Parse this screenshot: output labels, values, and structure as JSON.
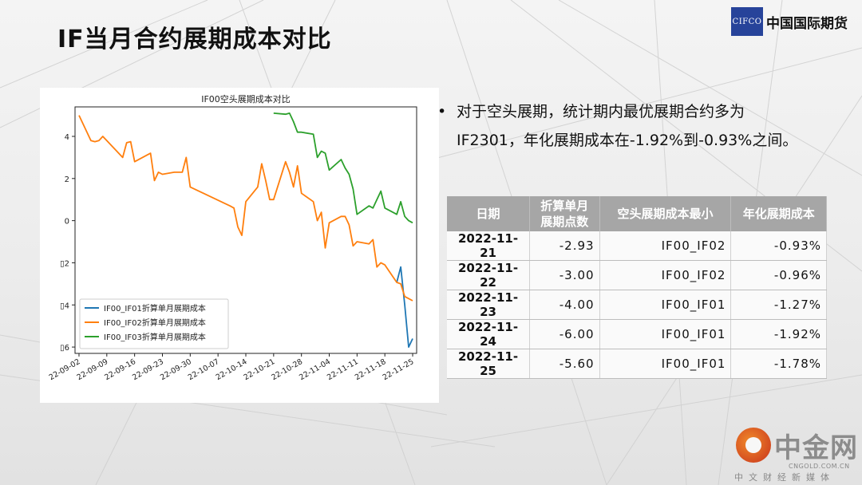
{
  "page": {
    "title": "IF当月合约展期成本对比"
  },
  "logo": {
    "box_text": "CIFCO",
    "name": "中国国际期货"
  },
  "bullet": {
    "line1": "对于空头展期，统计期内最优展期合约多为",
    "line2": "IF2301，年化展期成本在-1.92%到-0.93%之间。"
  },
  "table": {
    "headers": [
      "日期",
      "折算单月展期点数",
      "空头展期成本最小",
      "年化展期成本"
    ],
    "rows": [
      {
        "date": "2022-11-21",
        "points": "-2.93",
        "contract": "IF00_IF02",
        "rate": "-0.93%"
      },
      {
        "date": "2022-11-22",
        "points": "-3.00",
        "contract": "IF00_IF02",
        "rate": "-0.96%"
      },
      {
        "date": "2022-11-23",
        "points": "-4.00",
        "contract": "IF00_IF01",
        "rate": "-1.27%"
      },
      {
        "date": "2022-11-24",
        "points": "-6.00",
        "contract": "IF00_IF01",
        "rate": "-1.92%"
      },
      {
        "date": "2022-11-25",
        "points": "-5.60",
        "contract": "IF00_IF01",
        "rate": "-1.78%"
      }
    ]
  },
  "watermark": {
    "name": "中金网",
    "sub": "CNGOLD.COM.CN",
    "tag": "中文财经新媒体"
  },
  "chart_data": {
    "type": "line",
    "title": "IF00空头展期成本对比",
    "xlabel": "",
    "ylabel": "",
    "ylim": [
      -6.3,
      5.4
    ],
    "xlim": [
      "2022-09-01",
      "2022-11-26"
    ],
    "yticks": [
      4,
      2,
      0,
      -2,
      -4,
      -6
    ],
    "ytick_labels": [
      "4",
      "2",
      "0",
      "▯2",
      "▯4",
      "▯6"
    ],
    "xticks": [
      "2022-09-02",
      "2022-09-09",
      "2022-09-16",
      "2022-09-23",
      "2022-09-30",
      "2022-10-07",
      "2022-10-14",
      "2022-10-21",
      "2022-10-28",
      "2022-11-04",
      "2022-11-11",
      "2022-11-18",
      "2022-11-25"
    ],
    "xtick_labels": [
      "22-09-02",
      "22-09-09",
      "22-09-16",
      "22-09-23",
      "22-09-30",
      "22-10-07",
      "22-10-14",
      "22-10-21",
      "22-10-28",
      "22-11-04",
      "22-11-11",
      "22-11-18",
      "22-11-25"
    ],
    "grid": false,
    "legend_position": "lower-left",
    "series": [
      {
        "name": "IF00_IF01折算单月展期成本",
        "color": "#1f77b4",
        "points": [
          [
            "2022-11-21",
            -2.93
          ],
          [
            "2022-11-22",
            -2.2
          ],
          [
            "2022-11-23",
            -4.0
          ],
          [
            "2022-11-24",
            -6.0
          ],
          [
            "2022-11-25",
            -5.6
          ]
        ]
      },
      {
        "name": "IF00_IF02折算单月展期成本",
        "color": "#ff7f0e",
        "points": [
          [
            "2022-09-02",
            5.0
          ],
          [
            "2022-09-05",
            3.8
          ],
          [
            "2022-09-06",
            3.75
          ],
          [
            "2022-09-07",
            3.8
          ],
          [
            "2022-09-08",
            4.0
          ],
          [
            "2022-09-09",
            3.8
          ],
          [
            "2022-09-13",
            3.0
          ],
          [
            "2022-09-14",
            3.7
          ],
          [
            "2022-09-15",
            3.75
          ],
          [
            "2022-09-16",
            2.8
          ],
          [
            "2022-09-19",
            3.1
          ],
          [
            "2022-09-20",
            3.2
          ],
          [
            "2022-09-21",
            1.9
          ],
          [
            "2022-09-22",
            2.3
          ],
          [
            "2022-09-23",
            2.2
          ],
          [
            "2022-09-26",
            2.3
          ],
          [
            "2022-09-27",
            2.3
          ],
          [
            "2022-09-28",
            2.3
          ],
          [
            "2022-09-29",
            3.0
          ],
          [
            "2022-09-30",
            1.6
          ],
          [
            "2022-10-10",
            0.7
          ],
          [
            "2022-10-11",
            0.6
          ],
          [
            "2022-10-12",
            -0.3
          ],
          [
            "2022-10-13",
            -0.7
          ],
          [
            "2022-10-14",
            0.9
          ],
          [
            "2022-10-17",
            1.6
          ],
          [
            "2022-10-18",
            2.7
          ],
          [
            "2022-10-19",
            1.9
          ],
          [
            "2022-10-20",
            1.0
          ],
          [
            "2022-10-21",
            1.0
          ],
          [
            "2022-10-24",
            2.8
          ],
          [
            "2022-10-25",
            2.3
          ],
          [
            "2022-10-26",
            1.6
          ],
          [
            "2022-10-27",
            2.6
          ],
          [
            "2022-10-28",
            1.3
          ],
          [
            "2022-10-31",
            0.9
          ],
          [
            "2022-11-01",
            0.0
          ],
          [
            "2022-11-02",
            0.4
          ],
          [
            "2022-11-03",
            -1.3
          ],
          [
            "2022-11-04",
            -0.1
          ],
          [
            "2022-11-07",
            0.2
          ],
          [
            "2022-11-08",
            0.2
          ],
          [
            "2022-11-09",
            -0.2
          ],
          [
            "2022-11-10",
            -1.2
          ],
          [
            "2022-11-11",
            -1.0
          ],
          [
            "2022-11-14",
            -1.1
          ],
          [
            "2022-11-15",
            -0.9
          ],
          [
            "2022-11-16",
            -2.2
          ],
          [
            "2022-11-17",
            -2.0
          ],
          [
            "2022-11-18",
            -2.1
          ],
          [
            "2022-11-21",
            -2.93
          ],
          [
            "2022-11-22",
            -3.0
          ],
          [
            "2022-11-23",
            -3.6
          ],
          [
            "2022-11-24",
            -3.7
          ],
          [
            "2022-11-25",
            -3.8
          ]
        ]
      },
      {
        "name": "IF00_IF03折算单月展期成本",
        "color": "#2ca02c",
        "points": [
          [
            "2022-10-21",
            5.1
          ],
          [
            "2022-10-24",
            5.05
          ],
          [
            "2022-10-25",
            5.1
          ],
          [
            "2022-10-26",
            4.7
          ],
          [
            "2022-10-27",
            4.2
          ],
          [
            "2022-10-28",
            4.2
          ],
          [
            "2022-10-31",
            4.1
          ],
          [
            "2022-11-01",
            3.0
          ],
          [
            "2022-11-02",
            3.3
          ],
          [
            "2022-11-03",
            3.2
          ],
          [
            "2022-11-04",
            2.4
          ],
          [
            "2022-11-07",
            2.9
          ],
          [
            "2022-11-08",
            2.5
          ],
          [
            "2022-11-09",
            2.2
          ],
          [
            "2022-11-10",
            1.5
          ],
          [
            "2022-11-11",
            0.3
          ],
          [
            "2022-11-14",
            0.7
          ],
          [
            "2022-11-15",
            0.6
          ],
          [
            "2022-11-16",
            1.0
          ],
          [
            "2022-11-17",
            1.4
          ],
          [
            "2022-11-18",
            0.6
          ],
          [
            "2022-11-21",
            0.3
          ],
          [
            "2022-11-22",
            0.9
          ],
          [
            "2022-11-23",
            0.2
          ],
          [
            "2022-11-24",
            0.0
          ],
          [
            "2022-11-25",
            -0.1
          ]
        ]
      }
    ]
  }
}
